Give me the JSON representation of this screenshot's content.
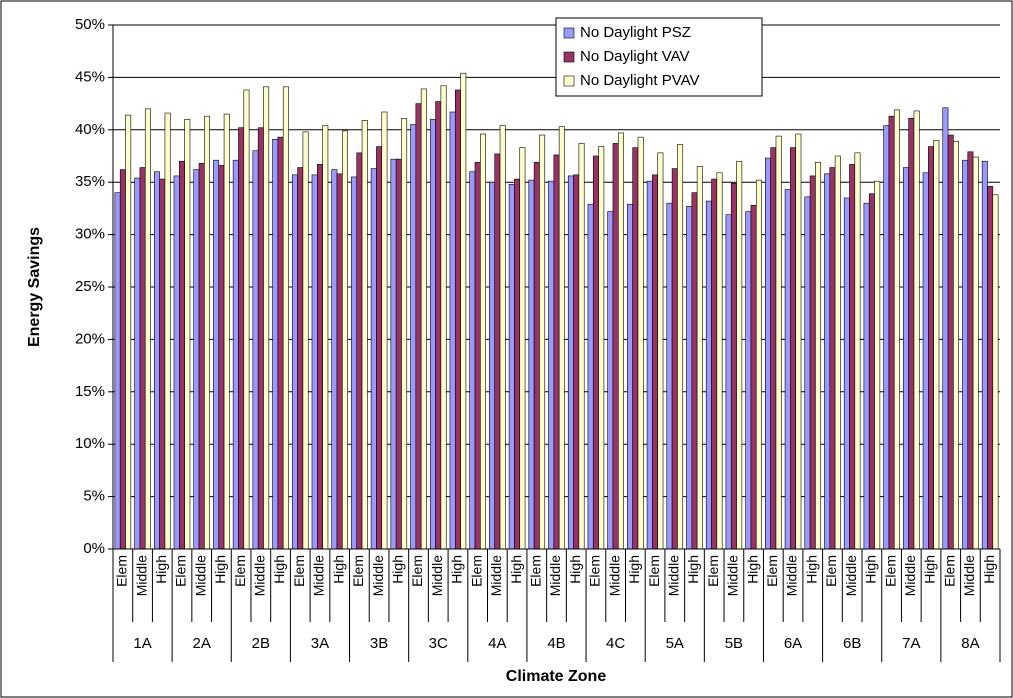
{
  "chart_data": {
    "type": "bar",
    "y_label": "Energy Savings",
    "x_label": "Climate Zone",
    "categories": [
      "Elem",
      "Middle",
      "High",
      "Elem",
      "Middle",
      "High",
      "Elem",
      "Middle",
      "High",
      "Elem",
      "Middle",
      "High",
      "Elem",
      "Middle",
      "High",
      "Elem",
      "Middle",
      "High",
      "Elem",
      "Middle",
      "High",
      "Elem",
      "Middle",
      "High",
      "Elem",
      "Middle",
      "High",
      "Elem",
      "Middle",
      "High",
      "Elem",
      "Middle",
      "High",
      "Elem",
      "Middle",
      "High",
      "Elem",
      "Middle",
      "High",
      "Elem",
      "Middle",
      "High",
      "Elem",
      "Middle",
      "High"
    ],
    "zones": [
      "1A",
      "2A",
      "2B",
      "3A",
      "3B",
      "3C",
      "4A",
      "4B",
      "4C",
      "5A",
      "5B",
      "6A",
      "6B",
      "7A",
      "8A"
    ],
    "series": [
      {
        "name": "No Daylight PSZ",
        "color": "#9999ff",
        "values": [
          34.0,
          35.4,
          36.0,
          35.6,
          36.2,
          37.1,
          37.1,
          38.0,
          39.1,
          35.7,
          35.7,
          36.2,
          35.5,
          36.3,
          37.2,
          40.5,
          41.0,
          41.7,
          36.0,
          35.0,
          34.8,
          35.2,
          35.1,
          35.6,
          32.9,
          32.2,
          32.9,
          35.1,
          33.0,
          32.7,
          33.2,
          31.9,
          32.2,
          37.3,
          34.3,
          33.6,
          35.8,
          33.5,
          33.0,
          40.4,
          36.4,
          35.9,
          42.1,
          37.1,
          37.0
        ]
      },
      {
        "name": "No Daylight VAV",
        "color": "#993366",
        "values": [
          36.2,
          36.4,
          35.3,
          37.0,
          36.8,
          36.6,
          40.2,
          40.2,
          39.3,
          36.4,
          36.7,
          35.8,
          37.8,
          38.4,
          37.2,
          42.5,
          42.7,
          43.8,
          36.9,
          37.7,
          35.3,
          36.9,
          37.6,
          35.7,
          37.5,
          38.7,
          38.3,
          35.7,
          36.3,
          34.0,
          35.3,
          34.9,
          32.8,
          38.3,
          38.3,
          35.6,
          36.4,
          36.7,
          33.9,
          41.3,
          41.1,
          38.4,
          39.5,
          37.9,
          34.6
        ]
      },
      {
        "name": "No Daylight PVAV",
        "color": "#ffffcc",
        "values": [
          41.4,
          42.0,
          41.6,
          41.0,
          41.3,
          41.5,
          43.8,
          44.1,
          44.1,
          39.8,
          40.4,
          39.9,
          40.9,
          41.7,
          41.1,
          43.9,
          44.2,
          45.4,
          39.6,
          40.4,
          38.3,
          39.5,
          40.3,
          38.7,
          38.4,
          39.7,
          39.3,
          37.8,
          38.6,
          36.5,
          35.9,
          37.0,
          35.2,
          39.4,
          39.6,
          36.9,
          37.5,
          37.8,
          35.1,
          41.9,
          41.8,
          39.0,
          38.9,
          37.4,
          33.8
        ]
      }
    ],
    "ylim": [
      0,
      50
    ],
    "yticks": [
      {
        "value": 0,
        "label": "0%"
      },
      {
        "value": 5,
        "label": "5%"
      },
      {
        "value": 10,
        "label": "10%"
      },
      {
        "value": 15,
        "label": "15%"
      },
      {
        "value": 20,
        "label": "20%"
      },
      {
        "value": 25,
        "label": "25%"
      },
      {
        "value": 30,
        "label": "30%"
      },
      {
        "value": 35,
        "label": "35%"
      },
      {
        "value": 40,
        "label": "40%"
      },
      {
        "value": 45,
        "label": "45%"
      },
      {
        "value": 50,
        "label": "50%"
      }
    ],
    "grid": true,
    "legend": "top-right"
  }
}
